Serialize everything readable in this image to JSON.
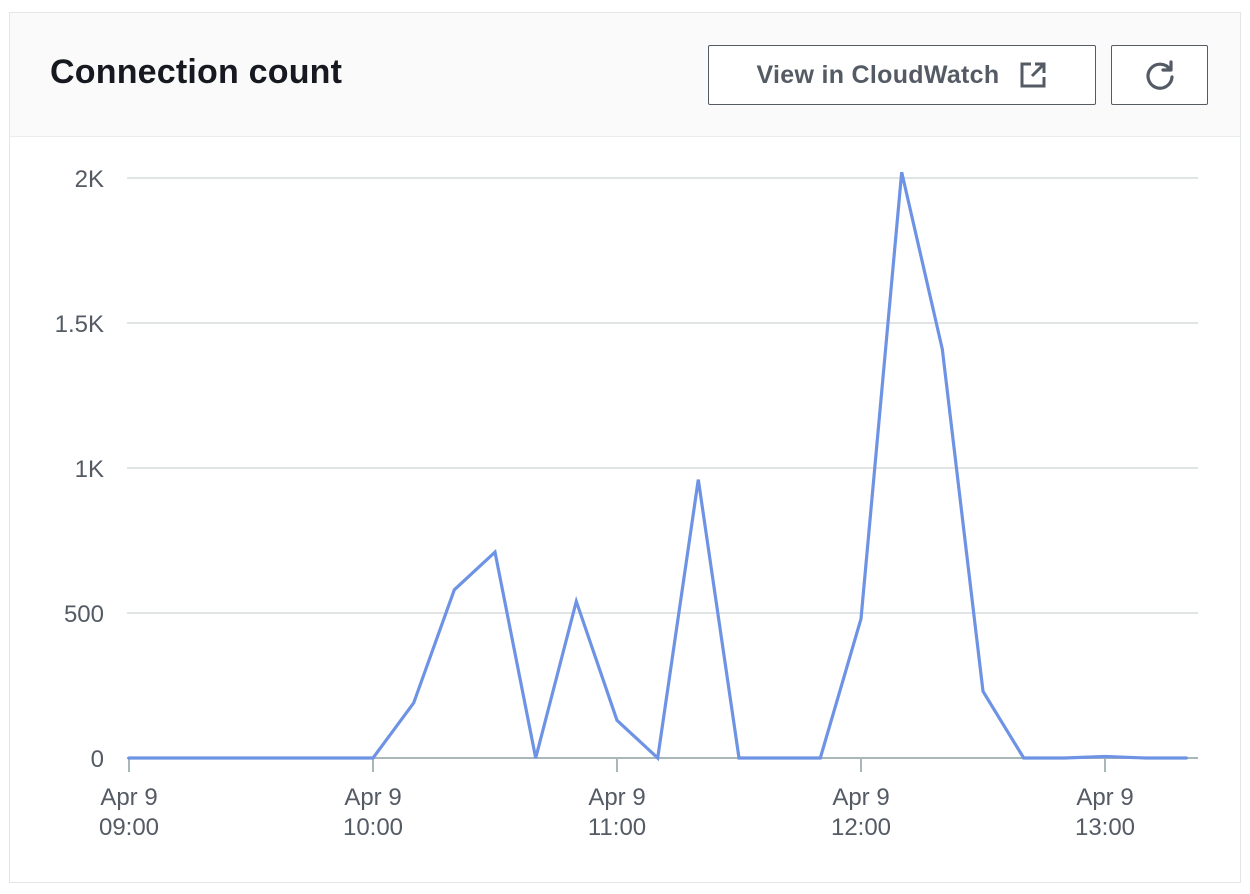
{
  "panel": {
    "title": "Connection count",
    "cloudwatch_button_label": "View in CloudWatch",
    "external_link_icon": "external-link-icon",
    "refresh_icon": "refresh-icon"
  },
  "colors": {
    "line": "#6f93e4",
    "grid": "#d5dbdb",
    "axis": "#aab7b8",
    "text": "#545b64",
    "title": "#16191f"
  },
  "chart_data": {
    "type": "line",
    "title": "",
    "xlabel": "",
    "ylabel": "",
    "ylim": [
      0,
      2000
    ],
    "y_ticks": [
      {
        "value": 0,
        "label": "0"
      },
      {
        "value": 500,
        "label": "500"
      },
      {
        "value": 1000,
        "label": "1K"
      },
      {
        "value": 1500,
        "label": "1.5K"
      },
      {
        "value": 2000,
        "label": "2K"
      }
    ],
    "x_ticks": [
      {
        "value": "Apr 9 09:00",
        "line1": "Apr 9",
        "line2": "09:00"
      },
      {
        "value": "Apr 9 10:00",
        "line1": "Apr 9",
        "line2": "10:00"
      },
      {
        "value": "Apr 9 11:00",
        "line1": "Apr 9",
        "line2": "11:00"
      },
      {
        "value": "Apr 9 12:00",
        "line1": "Apr 9",
        "line2": "12:00"
      },
      {
        "value": "Apr 9 13:00",
        "line1": "Apr 9",
        "line2": "13:00"
      }
    ],
    "grid": true,
    "legend": "none",
    "series": [
      {
        "x": [
          "Apr 9 09:00",
          "Apr 9 09:10",
          "Apr 9 09:20",
          "Apr 9 09:30",
          "Apr 9 09:40",
          "Apr 9 09:50",
          "Apr 9 10:00",
          "Apr 9 10:10",
          "Apr 9 10:20",
          "Apr 9 10:30",
          "Apr 9 10:40",
          "Apr 9 10:50",
          "Apr 9 11:00",
          "Apr 9 11:10",
          "Apr 9 11:20",
          "Apr 9 11:30",
          "Apr 9 11:40",
          "Apr 9 11:50",
          "Apr 9 12:00",
          "Apr 9 12:10",
          "Apr 9 12:20",
          "Apr 9 12:30",
          "Apr 9 12:40",
          "Apr 9 12:50",
          "Apr 9 13:00",
          "Apr 9 13:10",
          "Apr 9 13:20"
        ],
        "values": [
          0,
          0,
          0,
          0,
          0,
          0,
          0,
          190,
          580,
          710,
          0,
          540,
          130,
          0,
          960,
          0,
          0,
          0,
          480,
          2020,
          1410,
          230,
          0,
          0,
          5,
          0,
          0
        ]
      }
    ]
  }
}
